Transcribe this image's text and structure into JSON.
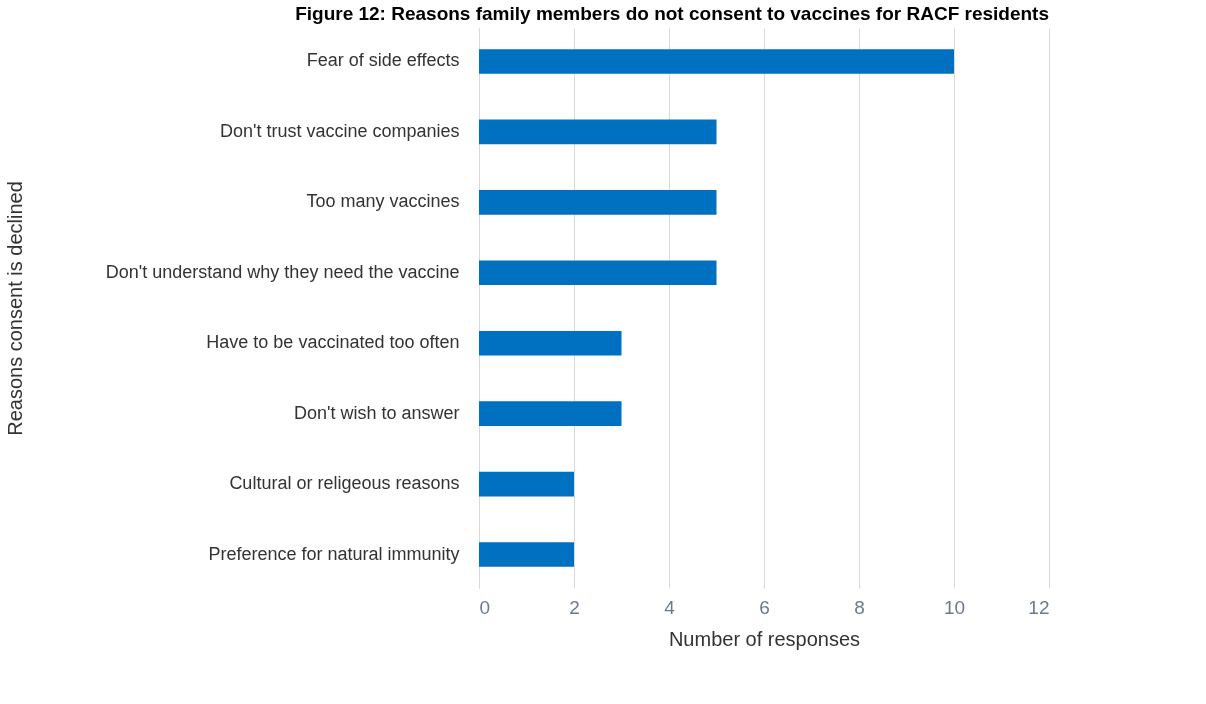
{
  "chart_data": {
    "type": "bar",
    "orientation": "horizontal",
    "title": "Figure 12: Reasons family members do not consent to vaccines for RACF residents",
    "xlabel": "Number of responses",
    "ylabel": "Reasons consent is declined",
    "categories": [
      "Fear of side effects",
      "Don't trust vaccine companies",
      "Too many vaccines",
      "Don't understand why they need the vaccine",
      "Have to be vaccinated too often ",
      "Don't wish to answer",
      "Cultural or religeous reasons",
      "Preference for natural immunity "
    ],
    "values": [
      10,
      5,
      5,
      5,
      3,
      3,
      2,
      2
    ],
    "color": "#0070c0",
    "xlim": [
      0,
      12
    ],
    "xticks": [
      0,
      2,
      4,
      6,
      8,
      10,
      12
    ],
    "grid": "x"
  }
}
